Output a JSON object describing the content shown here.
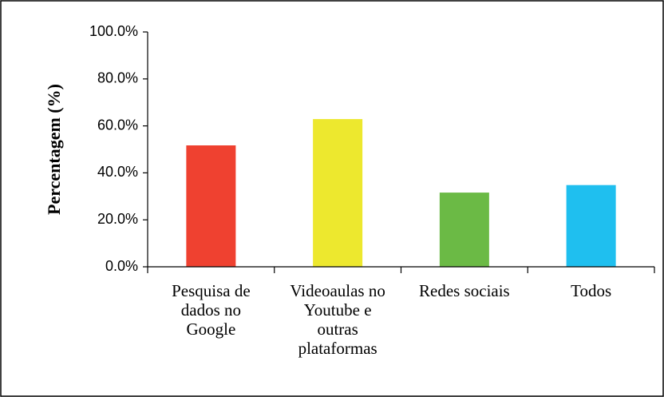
{
  "chart_data": {
    "type": "bar",
    "y_label": "Percentagem (%)",
    "categories": [
      "Pesquisa de dados no Google",
      "Videoaulas no Youtube e outras plataformas",
      "Redes sociais",
      "Todos"
    ],
    "values": [
      51.7,
      62.9,
      31.6,
      34.8
    ],
    "colors": [
      "#ef4130",
      "#ede82e",
      "#6bba45",
      "#1fbfef"
    ],
    "ylim": [
      0,
      100
    ],
    "yticks": [
      {
        "value": 0,
        "label": "0.0%"
      },
      {
        "value": 20,
        "label": "20.0%"
      },
      {
        "value": 40,
        "label": "40.0%"
      },
      {
        "value": 60,
        "label": "60.0%"
      },
      {
        "value": 80,
        "label": "80.0%"
      },
      {
        "value": 100,
        "label": "100.0%"
      }
    ],
    "grid": false
  }
}
